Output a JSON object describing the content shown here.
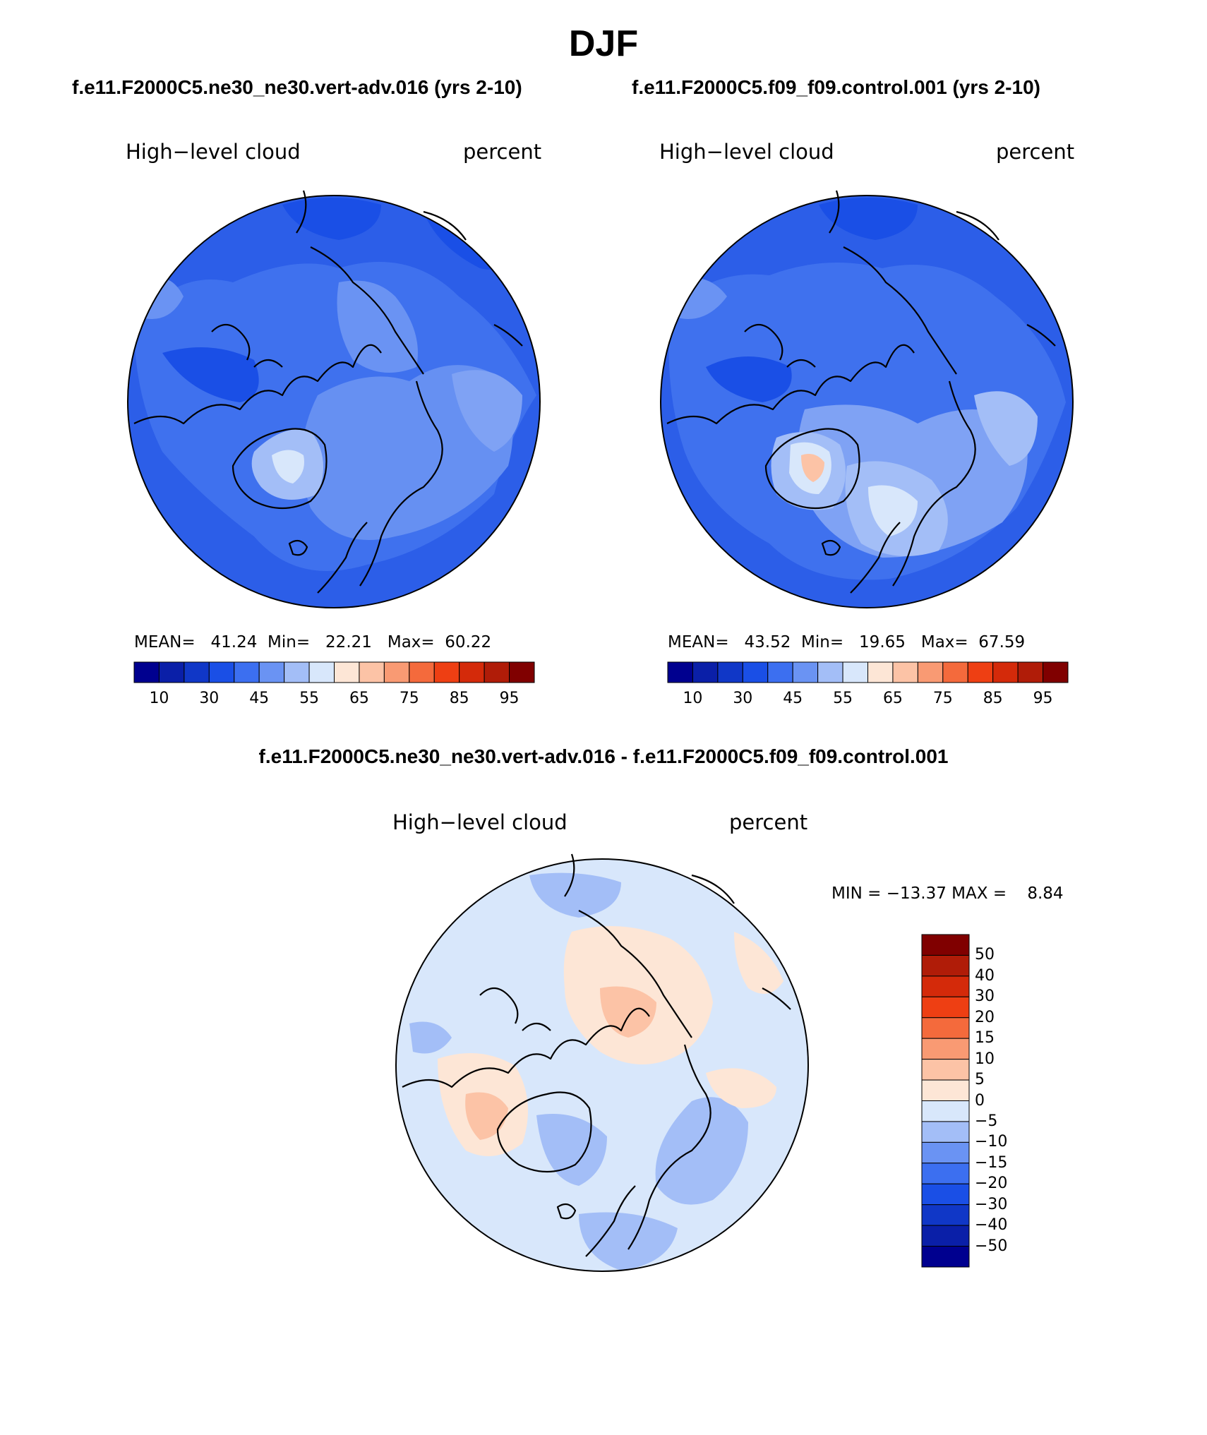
{
  "title": "DJF",
  "left_panel": {
    "case_title": "f.e11.F2000C5.ne30_ne30.vert-adv.016 (yrs 2-10)",
    "variable": "High−level cloud",
    "units": "percent",
    "stats": {
      "mean_label": "MEAN=",
      "mean": "41.24",
      "min_label": "Min=",
      "min": "22.21",
      "max_label": "Max=",
      "max": "60.22"
    }
  },
  "right_panel": {
    "case_title": "f.e11.F2000C5.f09_f09.control.001 (yrs 2-10)",
    "variable": "High−level cloud",
    "units": "percent",
    "stats": {
      "mean_label": "MEAN=",
      "mean": "43.52",
      "min_label": "Min=",
      "min": "19.65",
      "max_label": "Max=",
      "max": "67.59"
    }
  },
  "diff_panel": {
    "case_title": "f.e11.F2000C5.ne30_ne30.vert-adv.016 - f.e11.F2000C5.f09_f09.control.001",
    "variable": "High−level cloud",
    "units": "percent",
    "stats": {
      "min_label": "MIN =",
      "min": "−13.37",
      "max_label": "MAX =",
      "max": "8.84"
    }
  },
  "colorbar_abs": {
    "tick_labels": [
      "10",
      "30",
      "45",
      "55",
      "65",
      "75",
      "85",
      "95"
    ],
    "colors": [
      "#00008f",
      "#0a1fa8",
      "#1037c7",
      "#1a4fe6",
      "#3c6ff0",
      "#6a93f3",
      "#a3bef7",
      "#d8e7fb",
      "#fde6d6",
      "#fcc3a6",
      "#f99a73",
      "#f46a3c",
      "#ee3f13",
      "#d42a0a",
      "#b01c08",
      "#800000"
    ]
  },
  "colorbar_diff": {
    "tick_labels": [
      "50",
      "40",
      "30",
      "20",
      "15",
      "10",
      "5",
      "0",
      "−5",
      "−10",
      "−15",
      "−20",
      "−30",
      "−40",
      "−50"
    ],
    "colors": [
      "#800000",
      "#b01c08",
      "#d42a0a",
      "#ee3f13",
      "#f46a3c",
      "#f99a73",
      "#fcc3a6",
      "#fde6d6",
      "#d8e7fb",
      "#a3bef7",
      "#6a93f3",
      "#3c6ff0",
      "#1a4fe6",
      "#1037c7",
      "#0a1fa8",
      "#00008f"
    ]
  }
}
